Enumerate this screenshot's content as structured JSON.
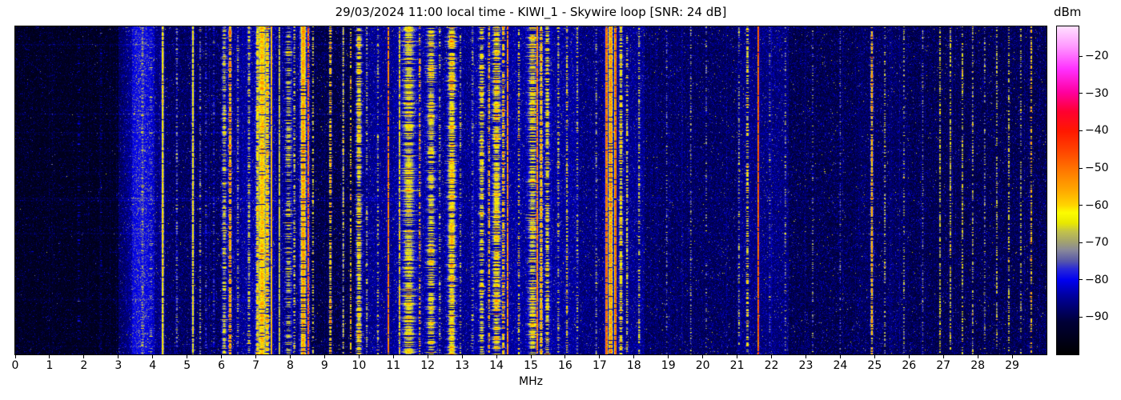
{
  "figure": {
    "title": "29/03/2024 11:00 local time - KIWI_1 - Skywire loop [SNR: 24 dB]",
    "background": "#ffffff"
  },
  "chart_data": {
    "type": "heatmap",
    "subtype": "radio-spectrogram-waterfall",
    "title": "29/03/2024 11:00 local time - KIWI_1 - Skywire loop [SNR: 24 dB]",
    "xlabel": "MHz",
    "x_range_mhz": [
      0,
      30
    ],
    "x_ticks": [
      0,
      1,
      2,
      3,
      4,
      5,
      6,
      7,
      8,
      9,
      10,
      11,
      12,
      13,
      14,
      15,
      16,
      17,
      18,
      19,
      20,
      21,
      22,
      23,
      24,
      25,
      26,
      27,
      28,
      29
    ],
    "y_axis_note": "time, no ticks or labels shown",
    "colorbar": {
      "label": "dBm",
      "tick_values": [
        -20,
        -30,
        -40,
        -50,
        -60,
        -70,
        -80,
        -90
      ],
      "tick_labels": [
        "−20",
        "−30",
        "−40",
        "−50",
        "−60",
        "−70",
        "−80",
        "−90"
      ],
      "vmin": -100,
      "vmax": -12,
      "colormap_stops": [
        [
          0.0,
          "#000000"
        ],
        [
          0.1,
          "#000038"
        ],
        [
          0.18,
          "#0000a0"
        ],
        [
          0.227,
          "#0000f0"
        ],
        [
          0.26,
          "#2828d8"
        ],
        [
          0.285,
          "#5858a8"
        ],
        [
          0.318,
          "#88889a"
        ],
        [
          0.341,
          "#a0a072"
        ],
        [
          0.375,
          "#c2c24a"
        ],
        [
          0.4,
          "#e8e800"
        ],
        [
          0.432,
          "#fcfc00"
        ],
        [
          0.455,
          "#ffd400"
        ],
        [
          0.5,
          "#ffa800"
        ],
        [
          0.56,
          "#ff7800"
        ],
        [
          0.62,
          "#ff4400"
        ],
        [
          0.68,
          "#ff1800"
        ],
        [
          0.74,
          "#ff0030"
        ],
        [
          0.8,
          "#ff00a0"
        ],
        [
          0.87,
          "#ff30ff"
        ],
        [
          0.94,
          "#ff9aff"
        ],
        [
          1.0,
          "#ffe0ff"
        ]
      ]
    },
    "noise_floor_regions_fields": [
      "f_start_mhz",
      "f_end_mhz",
      "base_level_dbm"
    ],
    "noise_floor_regions": [
      [
        0.0,
        3.0,
        -97
      ],
      [
        3.0,
        3.4,
        -92
      ],
      [
        3.4,
        4.05,
        -88
      ],
      [
        4.05,
        6.0,
        -91
      ],
      [
        6.0,
        6.6,
        -88
      ],
      [
        6.6,
        7.6,
        -87
      ],
      [
        7.6,
        8.6,
        -89
      ],
      [
        8.6,
        9.9,
        -93
      ],
      [
        9.9,
        10.3,
        -89
      ],
      [
        10.3,
        11.0,
        -88
      ],
      [
        11.0,
        12.3,
        -87
      ],
      [
        12.3,
        13.3,
        -88
      ],
      [
        13.3,
        16.4,
        -87
      ],
      [
        16.4,
        17.1,
        -89
      ],
      [
        17.1,
        18.3,
        -88
      ],
      [
        18.3,
        21.0,
        -91
      ],
      [
        21.0,
        22.5,
        -89
      ],
      [
        22.5,
        24.5,
        -92
      ],
      [
        24.5,
        26.0,
        -91
      ],
      [
        26.0,
        30.0,
        -92
      ]
    ],
    "band_glow": {
      "center_mhz": 3.65,
      "amp_db": 7,
      "sigma_mhz": 0.32
    },
    "signal_bands_fields": [
      "freq_mhz",
      "half_width_mhz",
      "peak_level_dbm",
      "duty"
    ],
    "signal_bands": [
      [
        1.85,
        0.02,
        -88,
        0.4
      ],
      [
        2.5,
        0.015,
        -89,
        0.35
      ],
      [
        3.7,
        0.02,
        -72,
        0.45
      ],
      [
        3.95,
        0.02,
        -76,
        0.4
      ],
      [
        4.29,
        0.025,
        -62,
        0.95
      ],
      [
        4.7,
        0.02,
        -74,
        0.55
      ],
      [
        5.17,
        0.025,
        -63,
        0.9
      ],
      [
        5.38,
        0.018,
        -73,
        0.5
      ],
      [
        5.55,
        0.015,
        -80,
        0.5
      ],
      [
        5.78,
        0.015,
        -80,
        0.5
      ],
      [
        6.08,
        0.05,
        -69,
        0.65
      ],
      [
        6.25,
        0.03,
        -53,
        0.7
      ],
      [
        6.48,
        0.02,
        -70,
        0.5
      ],
      [
        6.8,
        0.03,
        -67,
        0.55
      ],
      [
        7.05,
        0.04,
        -62,
        0.8
      ],
      [
        7.18,
        0.1,
        -58,
        0.95
      ],
      [
        7.33,
        0.05,
        -60,
        0.8
      ],
      [
        7.46,
        0.012,
        -55,
        0.97
      ],
      [
        7.68,
        0.012,
        -64,
        0.9
      ],
      [
        7.95,
        0.08,
        -68,
        0.5
      ],
      [
        8.12,
        0.02,
        -66,
        0.5
      ],
      [
        8.38,
        0.07,
        -55,
        0.9
      ],
      [
        8.53,
        0.015,
        -48,
        0.85
      ],
      [
        8.66,
        0.02,
        -65,
        0.4
      ],
      [
        9.17,
        0.03,
        -58,
        0.55
      ],
      [
        9.54,
        0.015,
        -64,
        0.7
      ],
      [
        9.76,
        0.015,
        -60,
        0.45
      ],
      [
        10.0,
        0.07,
        -62,
        0.75
      ],
      [
        10.23,
        0.02,
        -70,
        0.5
      ],
      [
        10.55,
        0.02,
        -68,
        0.4
      ],
      [
        10.85,
        0.012,
        -50,
        0.9
      ],
      [
        11.18,
        0.012,
        -64,
        0.85
      ],
      [
        11.45,
        0.15,
        -64,
        0.75
      ],
      [
        11.77,
        0.015,
        -53,
        0.5
      ],
      [
        12.1,
        0.1,
        -63,
        0.7
      ],
      [
        12.35,
        0.02,
        -68,
        0.4
      ],
      [
        12.7,
        0.1,
        -60,
        0.85
      ],
      [
        12.95,
        0.02,
        -70,
        0.4
      ],
      [
        13.3,
        0.02,
        -73,
        0.4
      ],
      [
        13.57,
        0.06,
        -63,
        0.6
      ],
      [
        13.78,
        0.015,
        -53,
        0.6
      ],
      [
        14.0,
        0.1,
        -61,
        0.75
      ],
      [
        14.2,
        0.03,
        -56,
        0.6
      ],
      [
        14.33,
        0.012,
        -50,
        0.9
      ],
      [
        14.65,
        0.02,
        -62,
        0.4
      ],
      [
        15.05,
        0.1,
        -64,
        0.7
      ],
      [
        15.18,
        0.012,
        -48,
        0.9
      ],
      [
        15.3,
        0.03,
        -58,
        0.85
      ],
      [
        15.48,
        0.05,
        -64,
        0.6
      ],
      [
        15.8,
        0.02,
        -66,
        0.4
      ],
      [
        16.05,
        0.02,
        -63,
        0.5
      ],
      [
        16.35,
        0.02,
        -68,
        0.4
      ],
      [
        16.9,
        0.015,
        -70,
        0.4
      ],
      [
        17.2,
        0.025,
        -48,
        0.95
      ],
      [
        17.32,
        0.05,
        -54,
        0.95
      ],
      [
        17.46,
        0.02,
        -46,
        0.95
      ],
      [
        17.62,
        0.04,
        -62,
        0.7
      ],
      [
        17.8,
        0.02,
        -66,
        0.5
      ],
      [
        18.15,
        0.02,
        -66,
        0.45
      ],
      [
        18.95,
        0.012,
        -72,
        0.35
      ],
      [
        19.65,
        0.012,
        -70,
        0.4
      ],
      [
        20.1,
        0.012,
        -74,
        0.3
      ],
      [
        21.05,
        0.015,
        -68,
        0.4
      ],
      [
        21.3,
        0.03,
        -62,
        0.5
      ],
      [
        21.62,
        0.012,
        -45,
        0.97
      ],
      [
        21.95,
        0.015,
        -72,
        0.3
      ],
      [
        22.4,
        0.015,
        -70,
        0.35
      ],
      [
        23.2,
        0.012,
        -74,
        0.3
      ],
      [
        24.0,
        0.012,
        -74,
        0.3
      ],
      [
        24.92,
        0.025,
        -57,
        0.7
      ],
      [
        25.3,
        0.015,
        -68,
        0.35
      ],
      [
        25.85,
        0.012,
        -70,
        0.35
      ],
      [
        26.4,
        0.012,
        -68,
        0.4
      ],
      [
        26.9,
        0.012,
        -66,
        0.5
      ],
      [
        27.2,
        0.012,
        -64,
        0.55
      ],
      [
        27.55,
        0.012,
        -64,
        0.5
      ],
      [
        27.85,
        0.012,
        -66,
        0.45
      ],
      [
        28.2,
        0.012,
        -70,
        0.4
      ],
      [
        28.55,
        0.012,
        -66,
        0.45
      ],
      [
        28.9,
        0.015,
        -64,
        0.5
      ],
      [
        29.25,
        0.012,
        -68,
        0.4
      ],
      [
        29.55,
        0.015,
        -55,
        0.5
      ]
    ],
    "horizontal_row_artifacts": {
      "count": 12,
      "boost_db_max": 4
    },
    "thin_vertical_line_artifacts": {
      "approx_count": 58,
      "boost_db_max": 3.5
    }
  }
}
